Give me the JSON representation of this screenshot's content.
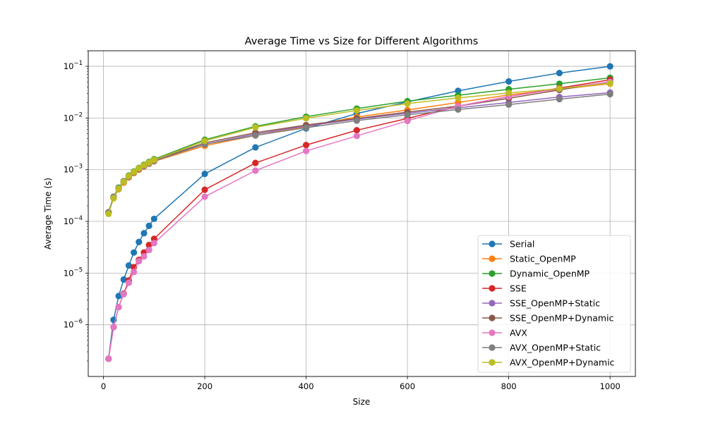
{
  "chart_data": {
    "type": "line",
    "title": "Average Time vs Size for Different Algorithms",
    "xlabel": "Size",
    "ylabel": "Average Time (s)",
    "xlim": [
      -30,
      1050
    ],
    "ylim": [
      1e-07,
      0.2
    ],
    "yscale": "log",
    "grid": true,
    "legend_position": "bottom-right",
    "x_ticks": [
      {
        "value": 0,
        "label": "0"
      },
      {
        "value": 200,
        "label": "200"
      },
      {
        "value": 400,
        "label": "400"
      },
      {
        "value": 600,
        "label": "600"
      },
      {
        "value": 800,
        "label": "800"
      },
      {
        "value": 1000,
        "label": "1000"
      }
    ],
    "y_ticks": [
      {
        "value": 1e-06,
        "base": "10",
        "exp": "−6"
      },
      {
        "value": 1e-05,
        "base": "10",
        "exp": "−5"
      },
      {
        "value": 0.0001,
        "base": "10",
        "exp": "−4"
      },
      {
        "value": 0.001,
        "base": "10",
        "exp": "−3"
      },
      {
        "value": 0.01,
        "base": "10",
        "exp": "−2"
      },
      {
        "value": 0.1,
        "base": "10",
        "exp": "−1"
      }
    ],
    "x": [
      10,
      20,
      30,
      40,
      50,
      60,
      70,
      80,
      90,
      100,
      200,
      300,
      400,
      500,
      600,
      700,
      800,
      900,
      1000
    ],
    "series": [
      {
        "name": "Serial",
        "color": "#1f77b4",
        "values": [
          2.2e-07,
          1.25e-06,
          3.6e-06,
          7.5e-06,
          1.4e-05,
          2.5e-05,
          4e-05,
          5.9e-05,
          8.2e-05,
          0.000112,
          0.00083,
          0.0027,
          0.0063,
          0.0122,
          0.0205,
          0.0335,
          0.051,
          0.074,
          0.1
        ]
      },
      {
        "name": "Static_OpenMP",
        "color": "#ff7f0e",
        "values": [
          0.00015,
          0.00028,
          0.00042,
          0.00056,
          0.00071,
          0.00086,
          0.001,
          0.00115,
          0.0013,
          0.00145,
          0.0029,
          0.0046,
          0.0068,
          0.0105,
          0.0143,
          0.02,
          0.028,
          0.036,
          0.046
        ]
      },
      {
        "name": "Dynamic_OpenMP",
        "color": "#2ca02c",
        "values": [
          0.00015,
          0.0003,
          0.00045,
          0.0006,
          0.00077,
          0.00092,
          0.00108,
          0.00125,
          0.00142,
          0.0016,
          0.0038,
          0.0069,
          0.0106,
          0.0152,
          0.0212,
          0.0275,
          0.036,
          0.046,
          0.06
        ]
      },
      {
        "name": "SSE",
        "color": "#d62728",
        "values": [
          2.2e-07,
          9e-07,
          2.2e-06,
          4e-06,
          7.2e-06,
          1.3e-05,
          1.8e-05,
          2.5e-05,
          3.5e-05,
          4.6e-05,
          0.00041,
          0.00135,
          0.003,
          0.0058,
          0.0098,
          0.017,
          0.026,
          0.038,
          0.055
        ]
      },
      {
        "name": "SSE_OpenMP+Static",
        "color": "#9467bd",
        "values": [
          0.00015,
          0.00029,
          0.00043,
          0.00058,
          0.00073,
          0.00088,
          0.00103,
          0.00118,
          0.00133,
          0.00148,
          0.0031,
          0.0049,
          0.007,
          0.0095,
          0.0123,
          0.0158,
          0.02,
          0.0255,
          0.031
        ]
      },
      {
        "name": "SSE_OpenMP+Dynamic",
        "color": "#8c564b",
        "values": [
          0.00015,
          0.00029,
          0.00043,
          0.00058,
          0.00074,
          0.00089,
          0.00104,
          0.0012,
          0.00136,
          0.00152,
          0.0033,
          0.0052,
          0.0073,
          0.0098,
          0.013,
          0.017,
          0.024,
          0.035,
          0.05
        ]
      },
      {
        "name": "AVX",
        "color": "#e377c2",
        "values": [
          2.2e-07,
          9e-07,
          2.2e-06,
          3.9e-06,
          6.5e-06,
          1.05e-05,
          1.7e-05,
          2.1e-05,
          2.8e-05,
          3.8e-05,
          0.0003,
          0.00096,
          0.0023,
          0.0045,
          0.0088,
          0.017,
          0.026,
          0.037,
          0.05
        ]
      },
      {
        "name": "AVX_OpenMP+Static",
        "color": "#7f7f7f",
        "values": [
          0.00015,
          0.0003,
          0.00044,
          0.0006,
          0.00075,
          0.0009,
          0.00105,
          0.0012,
          0.00135,
          0.0015,
          0.0031,
          0.0046,
          0.0065,
          0.0089,
          0.0115,
          0.0146,
          0.0182,
          0.0232,
          0.029
        ]
      },
      {
        "name": "AVX_OpenMP+Dynamic",
        "color": "#bcbd22",
        "values": [
          0.00014,
          0.00028,
          0.00043,
          0.00058,
          0.00075,
          0.0009,
          0.00106,
          0.00122,
          0.00138,
          0.00155,
          0.0036,
          0.0066,
          0.0099,
          0.014,
          0.019,
          0.0245,
          0.0305,
          0.037,
          0.047
        ]
      }
    ]
  }
}
